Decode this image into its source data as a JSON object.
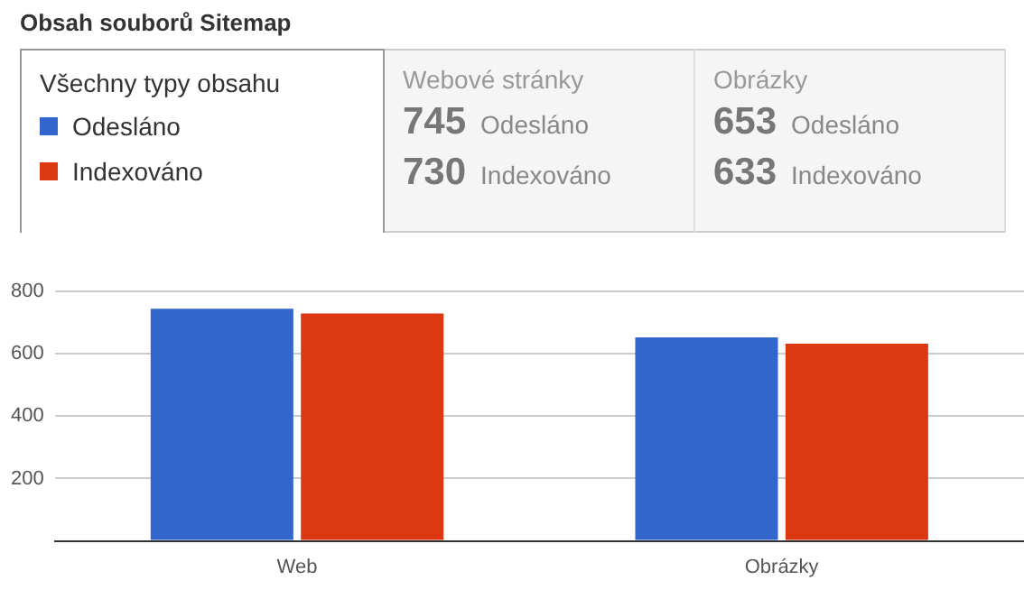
{
  "chart_data": {
    "type": "bar",
    "title": "Obsah souborů Sitemap",
    "legend_title": "Všechny typy obsahu",
    "annotations": [
      "Webové stránky",
      "Obrázky"
    ],
    "categories": [
      "Web",
      "Obrázky"
    ],
    "series": [
      {
        "name": "Odesláno",
        "color": "#3366cc",
        "values": [
          745,
          653
        ]
      },
      {
        "name": "Indexováno",
        "color": "#dc3912",
        "values": [
          730,
          633
        ]
      }
    ],
    "ylim": [
      0,
      800
    ],
    "yticks": [
      {
        "value": 0,
        "label": null
      },
      200,
      400,
      600,
      800
    ],
    "grid": "y",
    "legend": "top left",
    "data_labels": true
  }
}
